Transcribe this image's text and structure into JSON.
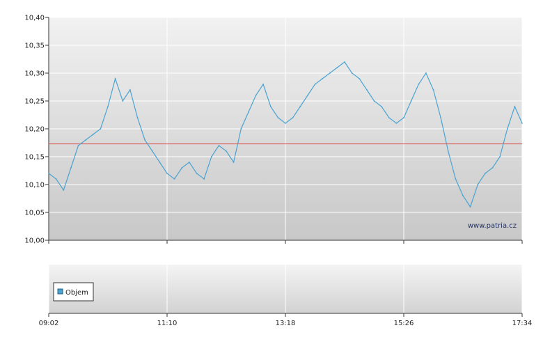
{
  "chart_data": [
    {
      "type": "line",
      "title": "",
      "xlabel": "",
      "ylabel": "",
      "x_tick_labels": [
        "09:02",
        "11:10",
        "13:18",
        "15:26",
        "17:34"
      ],
      "y_tick_labels": [
        "10,40",
        "10,35",
        "10,30",
        "10,25",
        "10,20",
        "10,15",
        "10,10",
        "10,05",
        "10,00"
      ],
      "ylim": [
        10.0,
        10.4
      ],
      "xlim": [
        "09:02",
        "17:34"
      ],
      "grid": true,
      "reference_line": {
        "value": 10.173,
        "color": "#d9534f"
      },
      "series": [
        {
          "color": "#4aa3d1",
          "x": [
            "09:02",
            "09:10",
            "09:18",
            "09:26",
            "09:34",
            "09:42",
            "09:50",
            "09:58",
            "10:06",
            "10:14",
            "10:22",
            "10:30",
            "10:38",
            "10:46",
            "10:54",
            "11:02",
            "11:10",
            "11:18",
            "11:26",
            "11:34",
            "11:42",
            "11:50",
            "11:58",
            "12:06",
            "12:14",
            "12:22",
            "12:30",
            "12:38",
            "12:46",
            "12:54",
            "13:02",
            "13:10",
            "13:18",
            "13:26",
            "13:34",
            "13:42",
            "13:50",
            "13:58",
            "14:06",
            "14:14",
            "14:22",
            "14:30",
            "14:38",
            "14:46",
            "14:54",
            "15:02",
            "15:10",
            "15:18",
            "15:26",
            "15:34",
            "15:42",
            "15:50",
            "15:58",
            "16:06",
            "16:14",
            "16:22",
            "16:30",
            "16:38",
            "16:46",
            "16:54",
            "17:02",
            "17:10",
            "17:18",
            "17:26",
            "17:34"
          ],
          "values": [
            10.12,
            10.11,
            10.09,
            10.13,
            10.17,
            10.18,
            10.19,
            10.2,
            10.24,
            10.29,
            10.25,
            10.27,
            10.22,
            10.18,
            10.16,
            10.14,
            10.12,
            10.11,
            10.13,
            10.14,
            10.12,
            10.11,
            10.15,
            10.17,
            10.16,
            10.14,
            10.2,
            10.23,
            10.26,
            10.28,
            10.24,
            10.22,
            10.21,
            10.22,
            10.24,
            10.26,
            10.28,
            10.29,
            10.3,
            10.31,
            10.32,
            10.3,
            10.29,
            10.27,
            10.25,
            10.24,
            10.22,
            10.21,
            10.22,
            10.25,
            10.28,
            10.3,
            10.27,
            10.22,
            10.16,
            10.11,
            10.08,
            10.06,
            10.1,
            10.12,
            10.13,
            10.15,
            10.2,
            10.24,
            10.21
          ]
        }
      ]
    },
    {
      "type": "bar",
      "title": "",
      "series": [
        {
          "name": "Objem",
          "values": []
        }
      ],
      "legend_position": "bottom-left",
      "grid": true
    }
  ],
  "watermark": "www.patria.cz"
}
